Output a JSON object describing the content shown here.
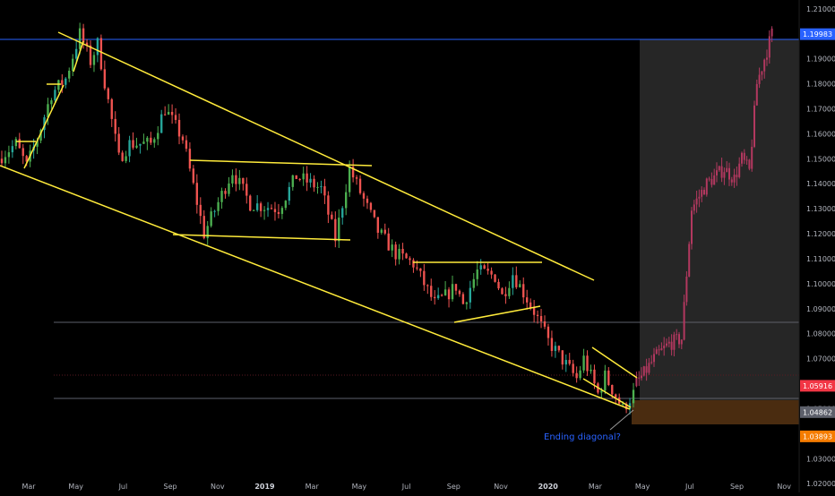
{
  "chart_data": {
    "type": "candlestick",
    "title": "",
    "xlabel": "",
    "ylabel": "",
    "x_tick_labels": [
      "Mar",
      "May",
      "Jul",
      "Sep",
      "Nov",
      "2019",
      "Mar",
      "May",
      "Jul",
      "Sep",
      "Nov",
      "2020",
      "Mar",
      "May",
      "Jul",
      "Sep",
      "Nov"
    ],
    "y_tick_labels": [
      "1.21000",
      "1.20000",
      "1.19000",
      "1.18000",
      "1.17000",
      "1.16000",
      "1.15000",
      "1.14000",
      "1.13000",
      "1.12000",
      "1.11000",
      "1.10000",
      "1.09000",
      "1.08000",
      "1.07000",
      "1.06000",
      "1.05000",
      "1.04000",
      "1.03000",
      "1.02000"
    ],
    "ylim": [
      1.0165,
      1.2135
    ],
    "price_badges": [
      {
        "label": "1.19983",
        "value": 1.19983,
        "color": "#2962ff"
      },
      {
        "label": "1.05916",
        "value": 1.05916,
        "color": "#f23645"
      },
      {
        "label": "1.04862",
        "value": 1.04862,
        "color": "#5d606b"
      },
      {
        "label": "1.03893",
        "value": 1.03893,
        "color": "#f57c00"
      }
    ],
    "annotation": {
      "text": "Ending diagonal?",
      "color": "#2962ff"
    },
    "colors": {
      "up": "#26a69a",
      "up_bright": "#4caf50",
      "down": "#ef5350",
      "projection": "#b2385f",
      "trendline": "#ffeb3b",
      "hline": "#2962ff"
    },
    "segments": [
      {
        "from": 1.15,
        "to": 1.156,
        "bars": 5
      },
      {
        "from": 1.156,
        "to": 1.147,
        "bars": 3
      },
      {
        "from": 1.147,
        "to": 1.158,
        "bars": 3
      },
      {
        "from": 1.158,
        "to": 1.176,
        "bars": 4
      },
      {
        "from": 1.176,
        "to": 1.182,
        "bars": 4
      },
      {
        "from": 1.182,
        "to": 1.2,
        "bars": 4
      },
      {
        "from": 1.2,
        "to": 1.189,
        "bars": 3
      },
      {
        "from": 1.189,
        "to": 1.196,
        "bars": 2
      },
      {
        "from": 1.196,
        "to": 1.15,
        "bars": 6
      },
      {
        "from": 1.15,
        "to": 1.156,
        "bars": 3
      },
      {
        "from": 1.156,
        "to": 1.156,
        "bars": 6
      },
      {
        "from": 1.156,
        "to": 1.17,
        "bars": 4
      },
      {
        "from": 1.17,
        "to": 1.158,
        "bars": 5
      },
      {
        "from": 1.158,
        "to": 1.12,
        "bars": 6
      },
      {
        "from": 1.12,
        "to": 1.145,
        "bars": 8
      },
      {
        "from": 1.145,
        "to": 1.132,
        "bars": 5
      },
      {
        "from": 1.132,
        "to": 1.13,
        "bars": 8
      },
      {
        "from": 1.13,
        "to": 1.143,
        "bars": 5
      },
      {
        "from": 1.143,
        "to": 1.138,
        "bars": 7
      },
      {
        "from": 1.138,
        "to": 1.118,
        "bars": 4
      },
      {
        "from": 1.118,
        "to": 1.146,
        "bars": 4
      },
      {
        "from": 1.146,
        "to": 1.121,
        "bars": 8
      },
      {
        "from": 1.121,
        "to": 1.112,
        "bars": 5
      },
      {
        "from": 1.112,
        "to": 1.108,
        "bars": 5
      },
      {
        "from": 1.108,
        "to": 1.092,
        "bars": 6
      },
      {
        "from": 1.092,
        "to": 1.095,
        "bars": 3
      },
      {
        "from": 1.095,
        "to": 1.099,
        "bars": 3
      },
      {
        "from": 1.099,
        "to": 1.092,
        "bars": 2
      },
      {
        "from": 1.092,
        "to": 1.105,
        "bars": 4
      },
      {
        "from": 1.105,
        "to": 1.103,
        "bars": 5
      },
      {
        "from": 1.103,
        "to": 1.095,
        "bars": 2
      },
      {
        "from": 1.095,
        "to": 1.104,
        "bars": 3
      },
      {
        "from": 1.104,
        "to": 1.089,
        "bars": 6
      },
      {
        "from": 1.089,
        "to": 1.077,
        "bars": 4
      },
      {
        "from": 1.077,
        "to": 1.062,
        "bars": 8
      },
      {
        "from": 1.062,
        "to": 1.07,
        "bars": 2
      },
      {
        "from": 1.07,
        "to": 1.056,
        "bars": 4
      },
      {
        "from": 1.056,
        "to": 1.063,
        "bars": 2
      },
      {
        "from": 1.063,
        "to": 1.05,
        "bars": 5
      },
      {
        "from": 1.05,
        "to": 1.056,
        "bars": 3
      }
    ],
    "projection": [
      {
        "from": 1.059,
        "to": 1.064,
        "bars": 4
      },
      {
        "from": 1.064,
        "to": 1.07,
        "bars": 4
      },
      {
        "from": 1.07,
        "to": 1.076,
        "bars": 6
      },
      {
        "from": 1.076,
        "to": 1.078,
        "bars": 5
      },
      {
        "from": 1.078,
        "to": 1.13,
        "bars": 4
      },
      {
        "from": 1.13,
        "to": 1.14,
        "bars": 6
      },
      {
        "from": 1.14,
        "to": 1.146,
        "bars": 7
      },
      {
        "from": 1.146,
        "to": 1.142,
        "bars": 4
      },
      {
        "from": 1.142,
        "to": 1.15,
        "bars": 3
      },
      {
        "from": 1.15,
        "to": 1.145,
        "bars": 3
      },
      {
        "from": 1.145,
        "to": 1.18,
        "bars": 3
      },
      {
        "from": 1.18,
        "to": 1.2,
        "bars": 6
      }
    ]
  }
}
